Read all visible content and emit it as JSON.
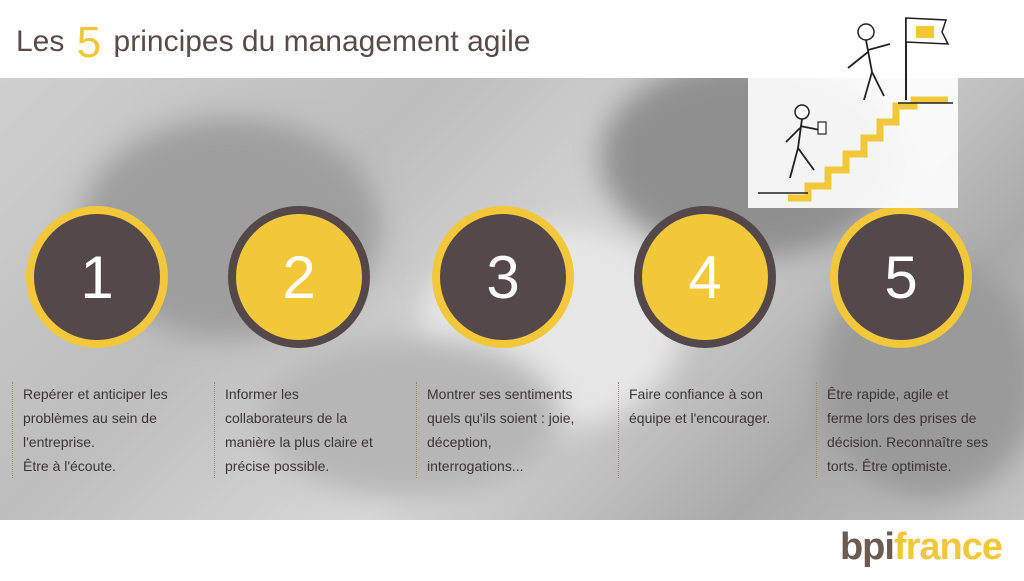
{
  "title": {
    "prefix": "Les ",
    "number": "5",
    "suffix": " principes du management agile"
  },
  "principles": [
    {
      "number": "1",
      "text": "Repérer et anticiper les\nproblèmes au sein de\nl'entreprise.\nÊtre à l'écoute."
    },
    {
      "number": "2",
      "text": "Informer les\ncollaborateurs de la\nmanière la plus claire et\nprécise possible."
    },
    {
      "number": "3",
      "text": "Montrer ses sentiments\nquels qu'ils soient : joie,\ndéception,\ninterrogations..."
    },
    {
      "number": "4",
      "text": "Faire confiance à son\néquipe et l'encourager."
    },
    {
      "number": "5",
      "text": "Être rapide, agile et\nferme lors des prises de\ndécision. Reconnaître ses\ntorts. Être optimiste."
    }
  ],
  "logo": {
    "part1": "bpi",
    "part2": "france"
  },
  "colors": {
    "accent": "#f3c73a",
    "dark": "#54484a",
    "text": "#3f3431"
  }
}
